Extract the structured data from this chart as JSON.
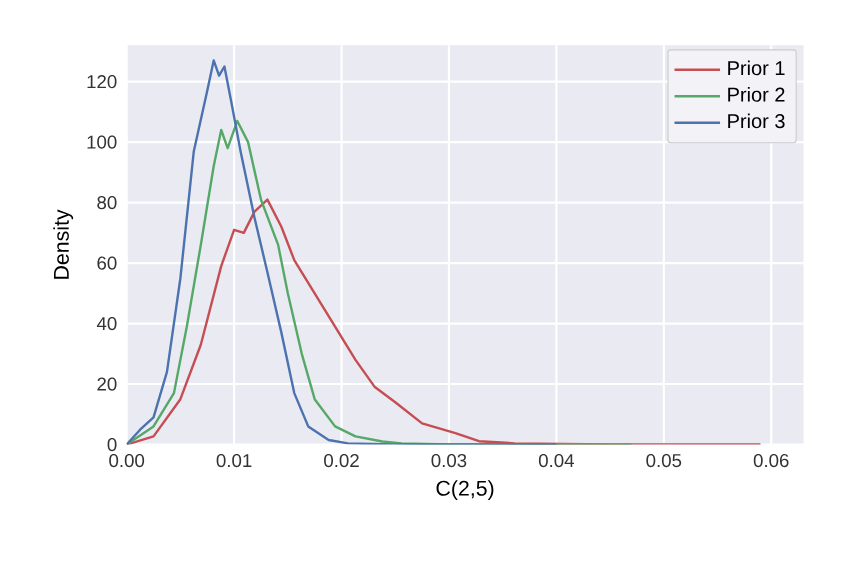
{
  "chart_data": {
    "type": "line",
    "xlabel": "$C(2,5)$",
    "ylabel": "Density",
    "xlim": [
      0,
      0.063
    ],
    "ylim": [
      0,
      132
    ],
    "xticks": [
      {
        "value": 0,
        "label": "0.00"
      },
      {
        "value": 0.01,
        "label": "0.01"
      },
      {
        "value": 0.02,
        "label": "0.02"
      },
      {
        "value": 0.03,
        "label": "0.03"
      },
      {
        "value": 0.04,
        "label": "0.04"
      },
      {
        "value": 0.05,
        "label": "0.05"
      },
      {
        "value": 0.06,
        "label": "0.06"
      }
    ],
    "yticks": [
      0,
      20,
      40,
      60,
      80,
      100,
      120
    ],
    "grid": true,
    "legend": "top right",
    "marker": "none",
    "line_style": "solid",
    "series": [
      {
        "name": "Prior 1",
        "color": "#c44e52",
        "x": [
          0,
          0.0025,
          0.005,
          0.0069,
          0.0088,
          0.01,
          0.0109,
          0.0119,
          0.0131,
          0.0144,
          0.0156,
          0.0175,
          0.0194,
          0.0213,
          0.0231,
          0.025,
          0.0275,
          0.0306,
          0.0328,
          0.0361,
          0.045,
          0.059
        ],
        "values": [
          0,
          2.7,
          15,
          33,
          59,
          71,
          70,
          77,
          81,
          72,
          61,
          50,
          39,
          28,
          19,
          14,
          7,
          3.8,
          1.1,
          0.4,
          0,
          0
        ]
      },
      {
        "name": "Prior 2",
        "color": "#55a868",
        "x": [
          0,
          0.0025,
          0.0044,
          0.0056,
          0.0069,
          0.0081,
          0.0088,
          0.0094,
          0.0103,
          0.0113,
          0.0125,
          0.0141,
          0.015,
          0.0163,
          0.0175,
          0.0194,
          0.0213,
          0.0238,
          0.0256,
          0.03,
          0.047
        ],
        "values": [
          0,
          6,
          17,
          39,
          66,
          92,
          104,
          98,
          107,
          100,
          81,
          66,
          50,
          30,
          15,
          6,
          2.7,
          1,
          0.4,
          0,
          0
        ]
      },
      {
        "name": "Prior 3",
        "color": "#4c72b0",
        "x": [
          0,
          0.00125,
          0.0025,
          0.00375,
          0.005,
          0.00625,
          0.0075,
          0.0081,
          0.0086,
          0.0091,
          0.0097,
          0.0106,
          0.0119,
          0.0131,
          0.0144,
          0.0156,
          0.0169,
          0.0188,
          0.0206,
          0.025,
          0.04
        ],
        "values": [
          0,
          4.9,
          9,
          24,
          55,
          97,
          117,
          127,
          122,
          125,
          114,
          97,
          75,
          57,
          37,
          17,
          6,
          1.5,
          0.4,
          0,
          0
        ]
      }
    ]
  }
}
